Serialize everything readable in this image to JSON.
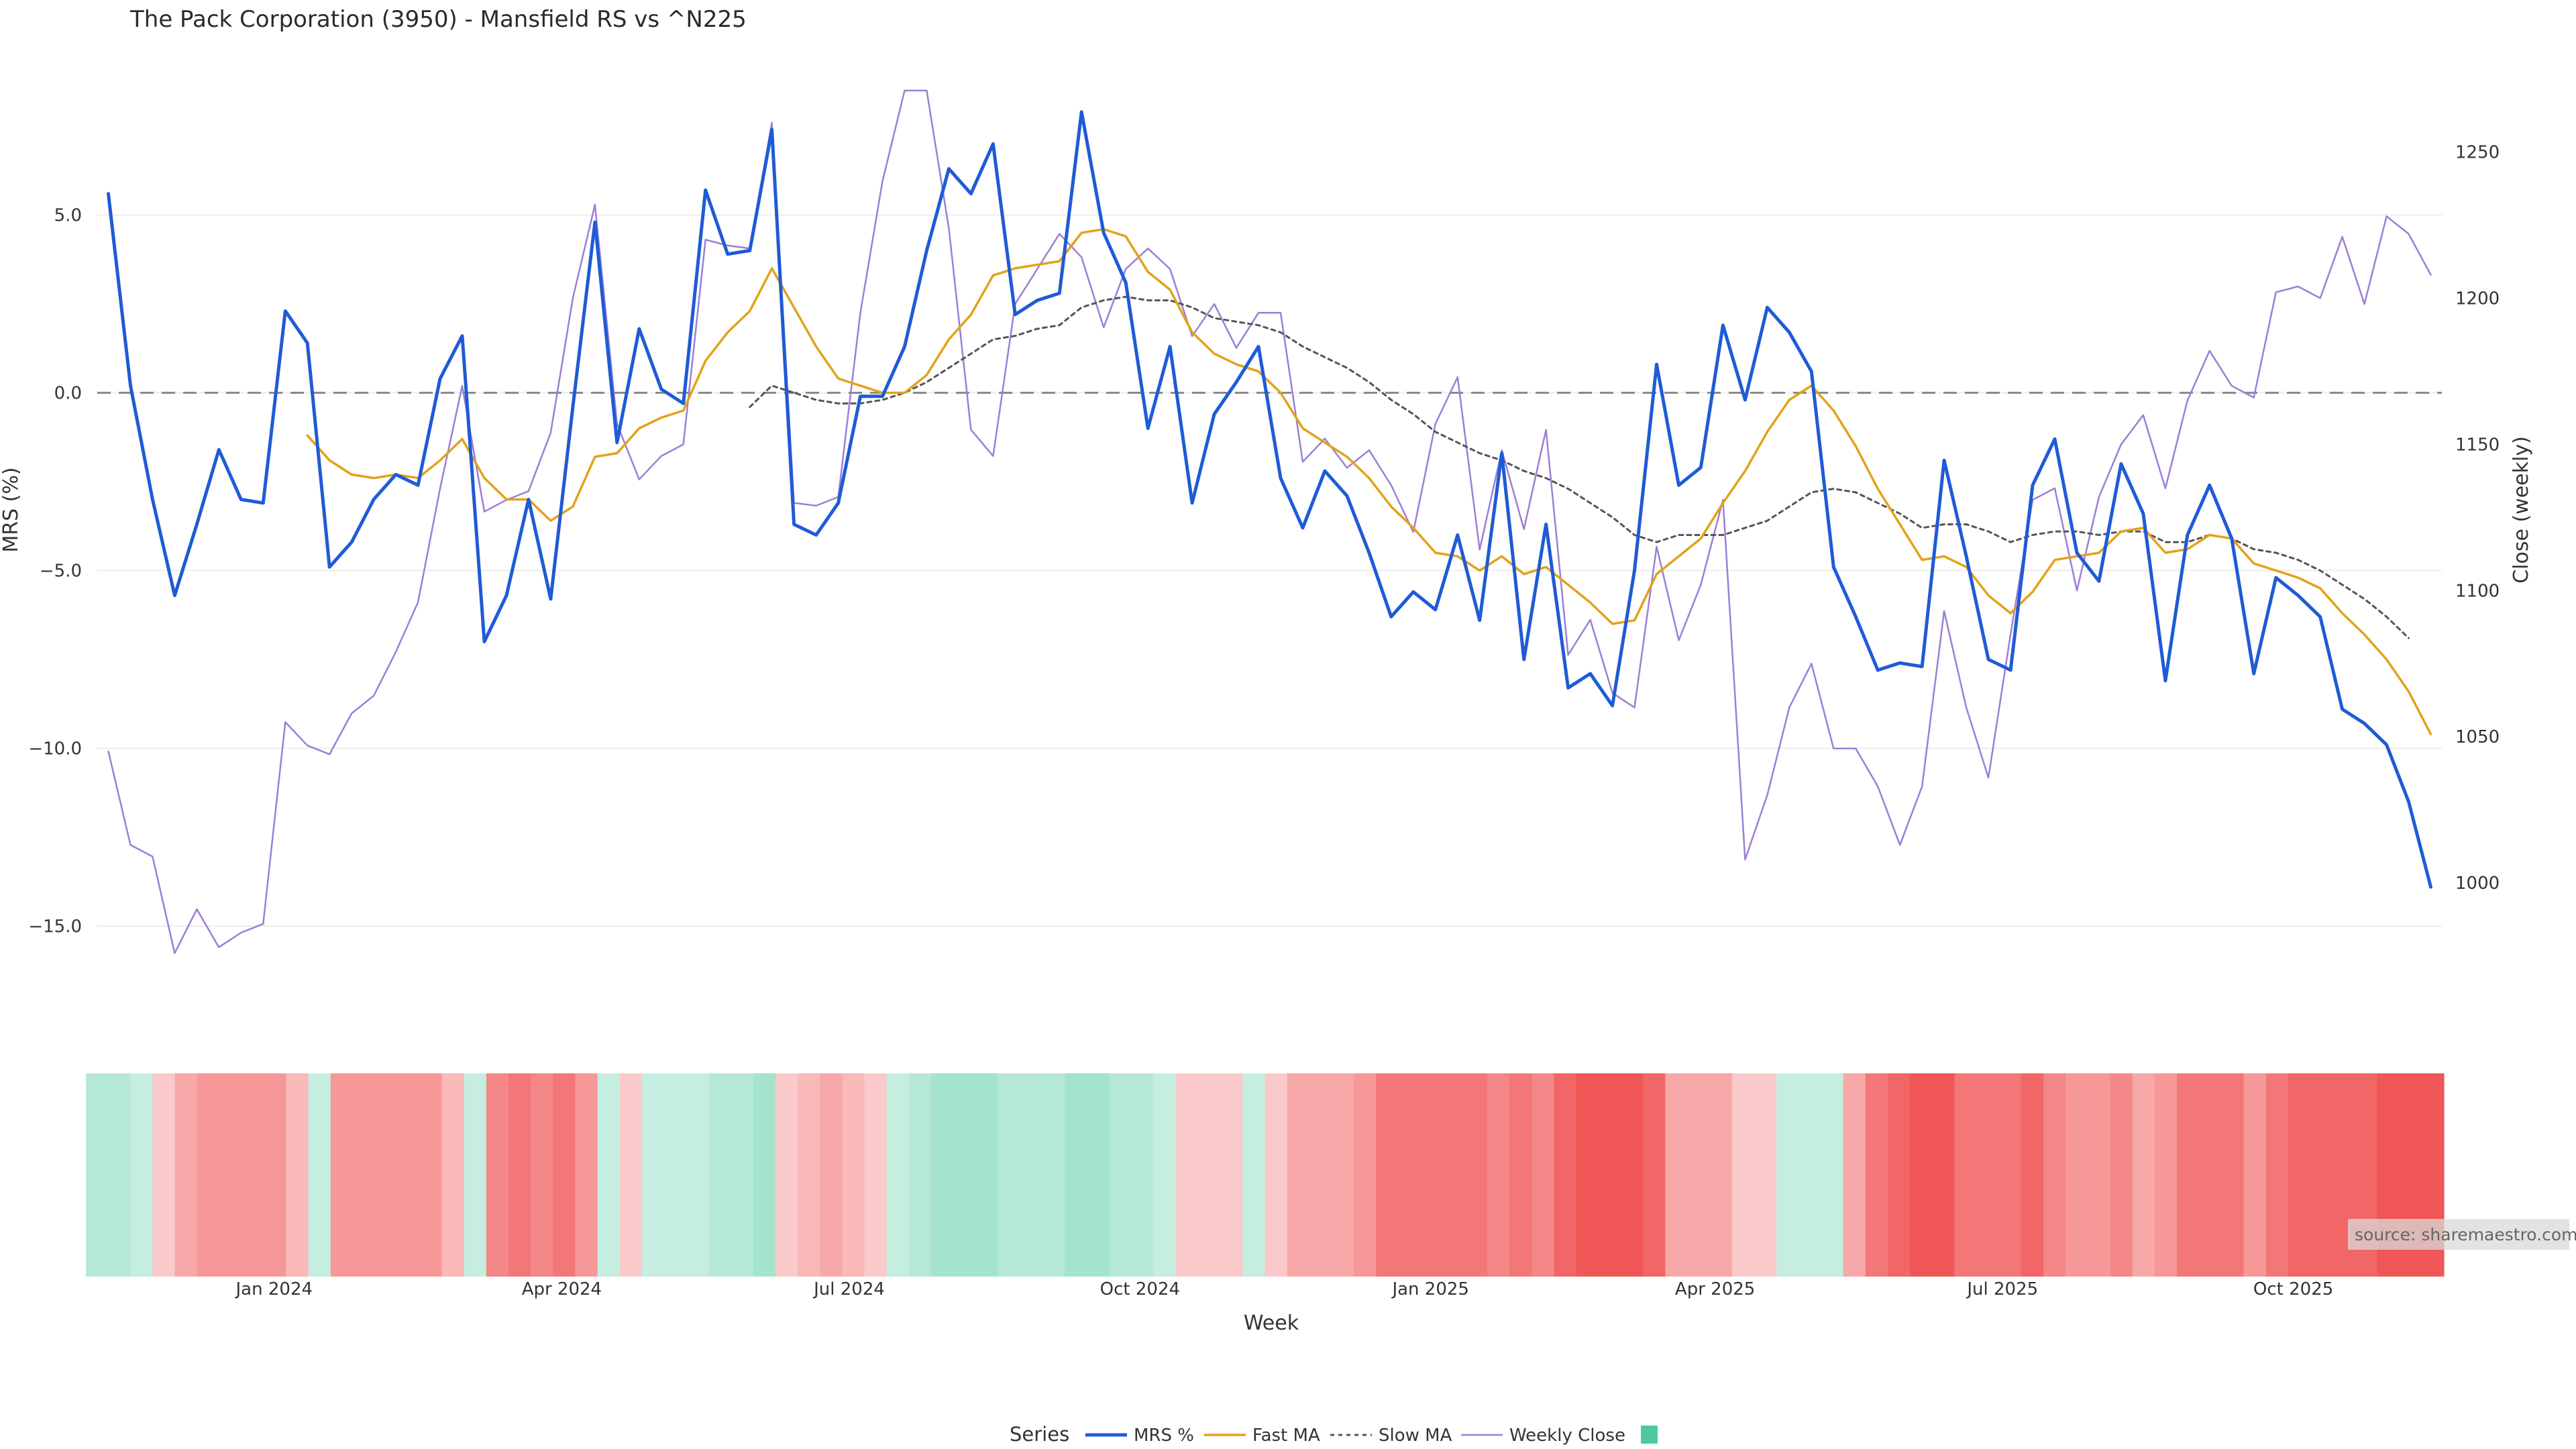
{
  "chart_data": {
    "type": "line",
    "title": "The Pack Corporation (3950) - Mansfield RS vs ^N225",
    "xlabel": "Week",
    "ylabel_left": "MRS (%)",
    "ylabel_right": "Close (weekly)",
    "x_start": "2023-11-06",
    "x_interval_days": 7,
    "x_ticks": [
      "Jan 2024",
      "Apr 2024",
      "Jul 2024",
      "Oct 2024",
      "Jan 2025",
      "Apr 2025",
      "Jul 2025",
      "Oct 2025"
    ],
    "y_left_ticks": [
      "5.0",
      "0.0",
      "−5.0",
      "−10.0",
      "−15.0"
    ],
    "y_left_range": [
      -16.5,
      8.5
    ],
    "y_right_ticks": [
      "1250",
      "1200",
      "1150",
      "1100",
      "1050",
      "1000"
    ],
    "y_right_range": [
      967,
      1271
    ],
    "zero_line": 0,
    "grid": true,
    "legend_position": "bottom",
    "legend_title": "Series",
    "series": [
      {
        "name": "MRS %",
        "axis": "left",
        "color": "#1f5bd6",
        "values": [
          5.6,
          0.2,
          -3.0,
          -5.7,
          -3.7,
          -1.6,
          -3.0,
          -3.1,
          2.3,
          1.4,
          -4.9,
          -4.2,
          -3.0,
          -2.3,
          -2.6,
          0.4,
          1.6,
          -7.0,
          -5.7,
          -3.0,
          -5.8,
          -0.4,
          4.8,
          -1.4,
          1.8,
          0.1,
          -0.3,
          5.7,
          3.9,
          4.0,
          7.4,
          -3.7,
          -4.0,
          -3.1,
          -0.1,
          -0.1,
          1.3,
          4.0,
          6.3,
          5.6,
          7.0,
          2.2,
          2.6,
          2.8,
          7.9,
          4.5,
          3.1,
          -1.0,
          1.3,
          -3.1,
          -0.6,
          0.3,
          1.3,
          -2.4,
          -3.8,
          -2.2,
          -2.9,
          -4.5,
          -6.3,
          -5.6,
          -6.1,
          -4.0,
          -6.4,
          -1.7,
          -7.5,
          -3.7,
          -8.3,
          -7.9,
          -8.8,
          -5.0,
          0.8,
          -2.6,
          -2.1,
          1.9,
          -0.2,
          2.4,
          1.7,
          0.6,
          -4.9,
          -6.3,
          -7.8,
          -7.6,
          -7.7,
          -1.9,
          -4.6,
          -7.5,
          -7.8,
          -2.6,
          -1.3,
          -4.5,
          -5.3,
          -2.0,
          -3.4,
          -8.1,
          -4.0,
          -2.6,
          -4.1,
          -7.9,
          -5.2,
          -5.7,
          -6.3,
          -8.9,
          -9.3,
          -9.9,
          -11.5,
          -13.9
        ]
      },
      {
        "name": "Fast MA",
        "axis": "left",
        "color": "#e3a21a",
        "values": [
          null,
          null,
          null,
          null,
          null,
          null,
          null,
          null,
          null,
          -1.2,
          -1.9,
          -2.3,
          -2.4,
          -2.3,
          -2.4,
          -1.9,
          -1.3,
          -2.4,
          -3.0,
          -3.0,
          -3.6,
          -3.2,
          -1.8,
          -1.7,
          -1.0,
          -0.7,
          -0.5,
          0.9,
          1.7,
          2.3,
          3.5,
          2.4,
          1.3,
          0.4,
          0.2,
          0.0,
          0.0,
          0.5,
          1.5,
          2.2,
          3.3,
          3.5,
          3.6,
          3.7,
          4.5,
          4.6,
          4.4,
          3.4,
          2.9,
          1.7,
          1.1,
          0.8,
          0.6,
          0.0,
          -1.0,
          -1.4,
          -1.8,
          -2.4,
          -3.2,
          -3.8,
          -4.5,
          -4.6,
          -5.0,
          -4.6,
          -5.1,
          -4.9,
          -5.4,
          -5.9,
          -6.5,
          -6.4,
          -5.1,
          -4.6,
          -4.1,
          -3.1,
          -2.2,
          -1.1,
          -0.2,
          0.2,
          -0.5,
          -1.5,
          -2.7,
          -3.7,
          -4.7,
          -4.6,
          -4.9,
          -5.7,
          -6.2,
          -5.6,
          -4.7,
          -4.6,
          -4.5,
          -3.9,
          -3.8,
          -4.5,
          -4.4,
          -4.0,
          -4.1,
          -4.8,
          -5.0,
          -5.2,
          -5.5,
          -6.2,
          -6.8,
          -7.5,
          -8.4,
          -9.6
        ]
      },
      {
        "name": "Slow MA",
        "axis": "left",
        "color": "#555555",
        "values": [
          null,
          null,
          null,
          null,
          null,
          null,
          null,
          null,
          null,
          null,
          null,
          null,
          null,
          null,
          null,
          null,
          null,
          null,
          null,
          null,
          null,
          null,
          null,
          null,
          null,
          null,
          null,
          null,
          null,
          -0.4,
          0.2,
          0.0,
          -0.2,
          -0.3,
          -0.3,
          -0.2,
          0.0,
          0.3,
          0.7,
          1.1,
          1.5,
          1.6,
          1.8,
          1.9,
          2.4,
          2.6,
          2.7,
          2.6,
          2.6,
          2.4,
          2.1,
          2.0,
          1.9,
          1.7,
          1.3,
          1.0,
          0.7,
          0.3,
          -0.2,
          -0.6,
          -1.1,
          -1.4,
          -1.7,
          -1.9,
          -2.2,
          -2.4,
          -2.7,
          -3.1,
          -3.5,
          -4.0,
          -4.2,
          -4.0,
          -4.0,
          -4.0,
          -3.8,
          -3.6,
          -3.2,
          -2.8,
          -2.7,
          -2.8,
          -3.1,
          -3.4,
          -3.8,
          -3.7,
          -3.7,
          -3.9,
          -4.2,
          -4.0,
          -3.9,
          -3.9,
          -4.0,
          -3.9,
          -3.9,
          -4.2,
          -4.2,
          -4.0,
          -4.1,
          -4.4,
          -4.5,
          -4.7,
          -5.0,
          -5.4,
          -5.8,
          -6.3,
          -6.9
        ]
      },
      {
        "name": "Weekly Close",
        "axis": "right",
        "color": "#9b7fd6",
        "values": [
          1045,
          1013,
          1009,
          976,
          991,
          978,
          983,
          986,
          1055,
          1047,
          1044,
          1058,
          1064,
          1079,
          1096,
          1135,
          1170,
          1127,
          1131,
          1134,
          1154,
          1200,
          1232,
          1157,
          1138,
          1146,
          1150,
          1220,
          1218,
          1217,
          1260,
          1130,
          1129,
          1132,
          1195,
          1240,
          1271,
          1271,
          1224,
          1155,
          1146,
          1198,
          1210,
          1222,
          1214,
          1190,
          1210,
          1217,
          1210,
          1187,
          1198,
          1183,
          1195,
          1195,
          1144,
          1152,
          1142,
          1148,
          1136,
          1120,
          1157,
          1173,
          1114,
          1148,
          1121,
          1155,
          1078,
          1090,
          1065,
          1060,
          1115,
          1083,
          1102,
          1131,
          1008,
          1030,
          1060,
          1075,
          1046,
          1046,
          1033,
          1013,
          1033,
          1093,
          1060,
          1036,
          1085,
          1131,
          1135,
          1100,
          1132,
          1150,
          1160,
          1135,
          1165,
          1182,
          1170,
          1166,
          1202,
          1204,
          1200,
          1221,
          1198,
          1228,
          1222,
          1208
        ]
      }
    ],
    "heatmap_strip": {
      "description_colors": [
        "#4dca9c",
        "#f05656"
      ],
      "values": [
        2,
        2,
        1,
        -1,
        -3,
        -4,
        -4,
        -4,
        -4,
        -2,
        1,
        -4,
        -4,
        -4,
        -4,
        -4,
        -2,
        1,
        -5,
        -6,
        -5,
        -6,
        -4,
        1,
        -1,
        1,
        1,
        1,
        2,
        2,
        3,
        -1,
        -2,
        -3,
        -2,
        -1,
        1,
        2,
        3,
        3,
        3,
        2,
        2,
        2,
        3,
        3,
        2,
        2,
        1,
        -1,
        -1,
        -1,
        1,
        -1,
        -3,
        -3,
        -3,
        -4,
        -6,
        -6,
        -6,
        -6,
        -6,
        -5,
        -6,
        -5,
        -7,
        -8,
        -8,
        -8,
        -7,
        -3,
        -3,
        -3,
        -1,
        -1,
        1,
        1,
        1,
        -3,
        -6,
        -7,
        -8,
        -8,
        -6,
        -6,
        -6,
        -7,
        -5,
        -4,
        -4,
        -5,
        -3,
        -4,
        -6,
        -6,
        -6,
        -4,
        -6,
        -7,
        -7,
        -7,
        -7,
        -8,
        -8,
        -8
      ]
    },
    "legend_items": [
      "MRS %",
      "Fast MA",
      "Slow MA",
      "Weekly Close"
    ],
    "legend_extra_swatch_color": "#4dca9c",
    "source_label": "source: sharemaestro.com"
  }
}
